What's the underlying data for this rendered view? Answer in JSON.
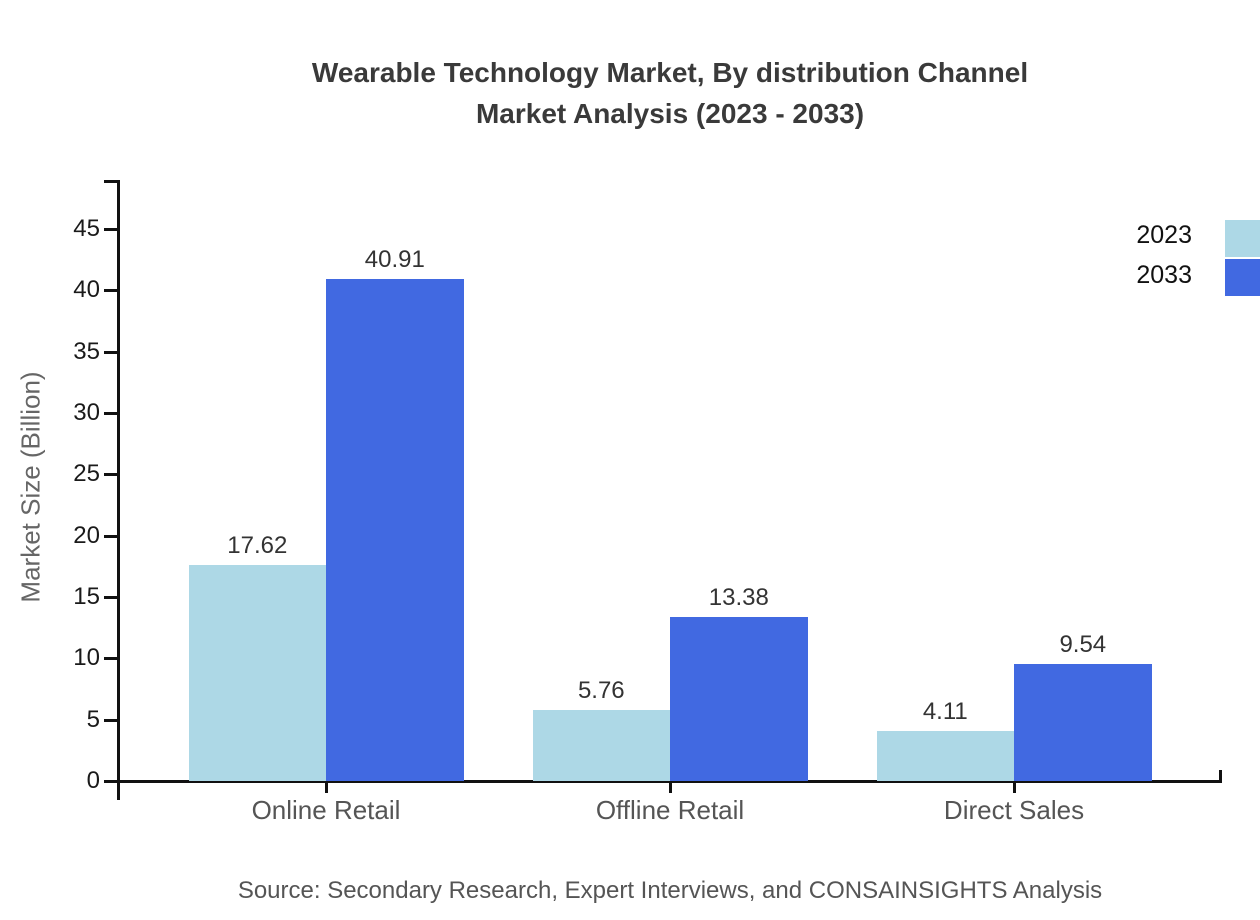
{
  "chart": {
    "title_line1": "Wearable Technology Market, By distribution Channel",
    "title_line2": "Market Analysis (2023 - 2033)",
    "source": "Source: Secondary Research, Expert Interviews, and CONSAINSIGHTS Analysis"
  },
  "chart_data": {
    "type": "bar",
    "title": "Wearable Technology Market, By distribution Channel Market Analysis (2023 - 2033)",
    "categories": [
      "Online Retail",
      "Offline Retail",
      "Direct Sales"
    ],
    "series": [
      {
        "name": "2023",
        "color": "#ADD8E6",
        "values": [
          17.62,
          5.76,
          4.11
        ]
      },
      {
        "name": "2033",
        "color": "#4169E1",
        "values": [
          40.91,
          13.38,
          9.54
        ]
      }
    ],
    "xlabel": "",
    "ylabel": "Market Size (Billion)",
    "ylim": [
      0,
      45
    ],
    "yticks": [
      0,
      5,
      10,
      15,
      20,
      25,
      30,
      35,
      40,
      45
    ],
    "grid": false,
    "legend_position": "top-right",
    "value_labels": true,
    "axis_color": "#111111",
    "value_label_color": "#333333",
    "category_label_color": "#555555"
  }
}
